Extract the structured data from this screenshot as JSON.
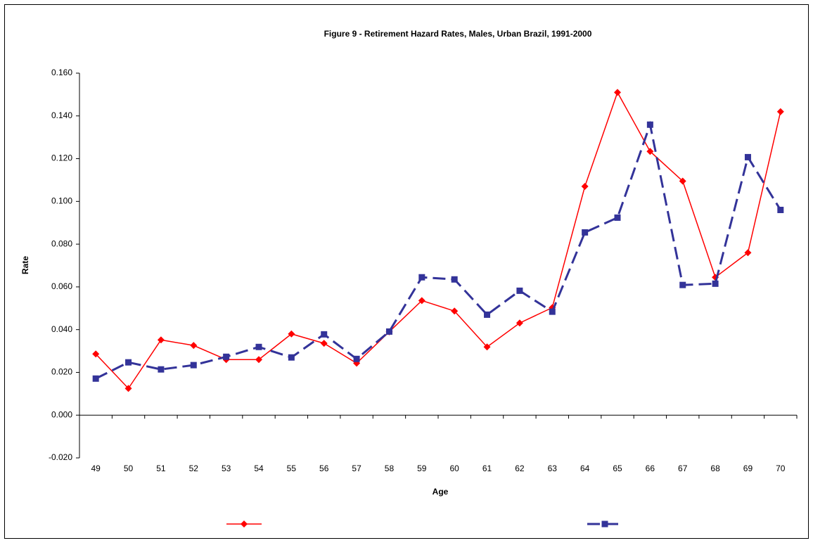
{
  "chart_data": {
    "type": "line",
    "title": "Figure 9 - Retirement Hazard Rates, Males, Urban Brazil, 1991-2000",
    "x_label": "Age",
    "y_label": "Rate",
    "categories": [
      "49",
      "50",
      "51",
      "52",
      "53",
      "54",
      "55",
      "56",
      "57",
      "58",
      "59",
      "60",
      "61",
      "62",
      "63",
      "64",
      "65",
      "66",
      "67",
      "68",
      "69",
      "70"
    ],
    "series": [
      {
        "color": "#ff0000",
        "marker": "diamond",
        "dash": false,
        "values": [
          0.0286,
          0.0125,
          0.0352,
          0.0326,
          0.026,
          0.026,
          0.038,
          0.0336,
          0.0243,
          0.039,
          0.0536,
          0.0487,
          0.0319,
          0.0431,
          0.0503,
          0.107,
          0.151,
          0.1234,
          0.1095,
          0.0645,
          0.076,
          0.142
        ]
      },
      {
        "color": "#333399",
        "marker": "square",
        "dash": true,
        "values": [
          0.0171,
          0.0247,
          0.0214,
          0.0234,
          0.0273,
          0.0319,
          0.027,
          0.0378,
          0.0263,
          0.0391,
          0.0645,
          0.0635,
          0.047,
          0.0582,
          0.0484,
          0.0855,
          0.0924,
          0.1359,
          0.0609,
          0.0615,
          0.1207,
          0.096
        ]
      }
    ],
    "ylim": [
      -0.02,
      0.16
    ],
    "yticks": [
      {
        "value": -0.02,
        "label": "-0.020"
      },
      {
        "value": 0,
        "label": "0.000"
      },
      {
        "value": 0.02,
        "label": "0.020"
      },
      {
        "value": 0.04,
        "label": "0.040"
      },
      {
        "value": 0.06,
        "label": "0.060"
      },
      {
        "value": 0.08,
        "label": "0.080"
      },
      {
        "value": 0.1,
        "label": "0.100"
      },
      {
        "value": 0.12,
        "label": "0.120"
      },
      {
        "value": 0.14,
        "label": "0.140"
      },
      {
        "value": 0.16,
        "label": "0.160"
      }
    ],
    "grid": false,
    "legend": "bottom"
  }
}
